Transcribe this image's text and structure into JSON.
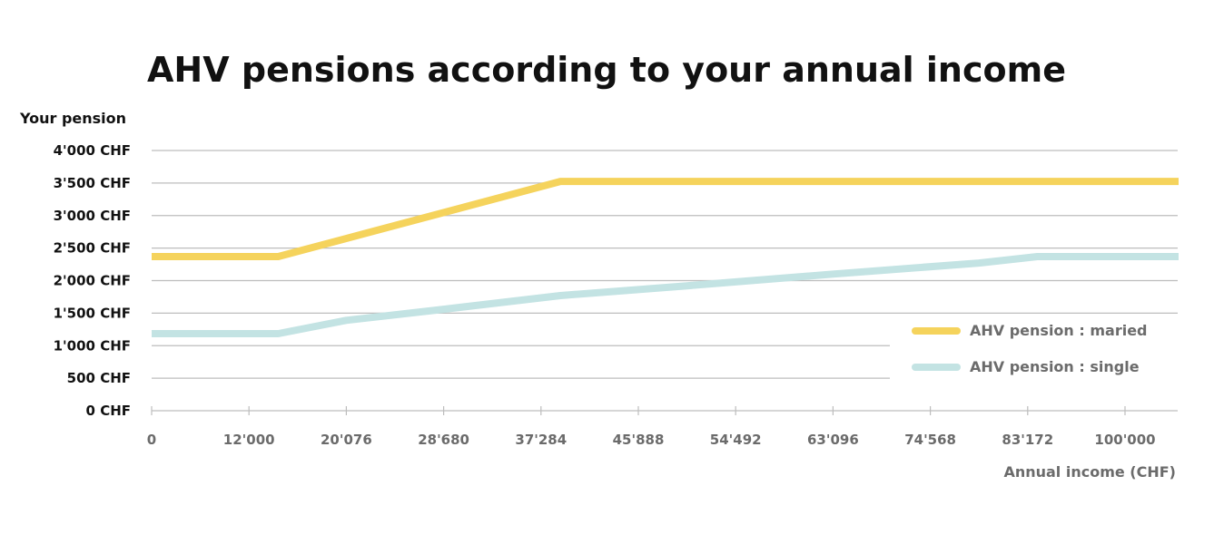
{
  "chart_data": {
    "type": "line",
    "title": "AHV pensions according to your annual income",
    "ylabel": "Your pension",
    "xlabel": "Annual income (CHF)",
    "x_tick_labels": [
      "0",
      "12'000",
      "20'076",
      "28'680",
      "37'284",
      "45'888",
      "54'492",
      "63'096",
      "74'568",
      "83'172",
      "100'000"
    ],
    "y_tick_labels": [
      "0 CHF",
      "500 CHF",
      "1'000 CHF",
      "1'500 CHF",
      "2'000 CHF",
      "2'500 CHF",
      "3'000 CHF",
      "3'500 CHF",
      "4'000 CHF"
    ],
    "ylim": [
      0,
      4000
    ],
    "grid": true,
    "legend_position": "bottom-right",
    "series": [
      {
        "name": "AHV pension : maried",
        "color": "#f5d35c",
        "points": [
          [
            0,
            2370
          ],
          [
            1.3,
            2370
          ],
          [
            4.2,
            3525
          ],
          [
            10.55,
            3525
          ]
        ]
      },
      {
        "name": "AHV pension : single",
        "color": "#c3e3e3",
        "points": [
          [
            0,
            1185
          ],
          [
            1.3,
            1185
          ],
          [
            2.0,
            1390
          ],
          [
            3.0,
            1560
          ],
          [
            4.2,
            1770
          ],
          [
            5.5,
            1920
          ],
          [
            7.0,
            2100
          ],
          [
            8.5,
            2270
          ],
          [
            9.1,
            2370
          ],
          [
            10.55,
            2370
          ]
        ]
      }
    ]
  }
}
